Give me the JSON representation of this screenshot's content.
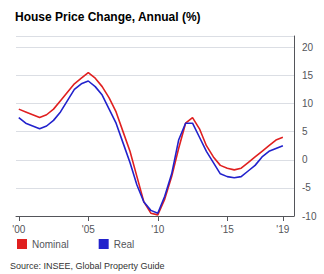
{
  "chart_data": {
    "type": "line",
    "title": "House Price Change, Annual (%)",
    "annotations": [
      "Source: INSEE, Global Property Guide"
    ],
    "x": [
      2000.0,
      2000.5,
      2001.0,
      2001.5,
      2002.0,
      2002.5,
      2003.0,
      2003.5,
      2004.0,
      2004.5,
      2005.0,
      2005.5,
      2006.0,
      2006.5,
      2007.0,
      2007.5,
      2008.0,
      2008.5,
      2009.0,
      2009.5,
      2010.0,
      2010.5,
      2011.0,
      2011.5,
      2012.0,
      2012.5,
      2013.0,
      2013.5,
      2014.0,
      2014.5,
      2015.0,
      2015.5,
      2016.0,
      2016.5,
      2017.0,
      2017.5,
      2018.0,
      2018.5,
      2019.0
    ],
    "series": [
      {
        "name": "Nominal",
        "color": "#e02020",
        "values": [
          9.0,
          8.5,
          8.0,
          7.5,
          8.0,
          9.0,
          10.5,
          12.0,
          13.5,
          14.5,
          15.5,
          14.5,
          13.0,
          11.0,
          8.5,
          5.0,
          1.5,
          -3.0,
          -7.5,
          -9.5,
          -9.8,
          -7.0,
          -3.0,
          2.0,
          6.5,
          7.5,
          5.5,
          2.5,
          0.5,
          -1.0,
          -1.5,
          -1.8,
          -1.5,
          -0.5,
          0.5,
          1.5,
          2.5,
          3.5,
          4.0
        ]
      },
      {
        "name": "Real",
        "color": "#2222cc",
        "values": [
          7.5,
          6.5,
          6.0,
          5.5,
          6.0,
          7.0,
          8.5,
          10.5,
          12.5,
          13.5,
          14.0,
          13.0,
          11.5,
          9.0,
          6.5,
          3.0,
          -0.5,
          -4.5,
          -7.5,
          -9.0,
          -9.5,
          -6.5,
          -2.5,
          3.5,
          6.5,
          6.5,
          4.0,
          1.5,
          -0.5,
          -2.5,
          -3.0,
          -3.2,
          -3.0,
          -2.0,
          -1.0,
          0.5,
          1.5,
          2.0,
          2.5
        ]
      }
    ],
    "xlim": [
      1999.8,
      2019.8
    ],
    "xticks": [
      {
        "value": 2000,
        "label": "'00"
      },
      {
        "value": 2005,
        "label": "'05"
      },
      {
        "value": 2010,
        "label": "'10"
      },
      {
        "value": 2015,
        "label": "'15"
      },
      {
        "value": 2019,
        "label": "'19"
      }
    ],
    "ylim": [
      -10,
      22
    ],
    "yticks": [
      -10,
      -5,
      0,
      5,
      10,
      15,
      20
    ],
    "grid": true,
    "legend": "bottom"
  }
}
